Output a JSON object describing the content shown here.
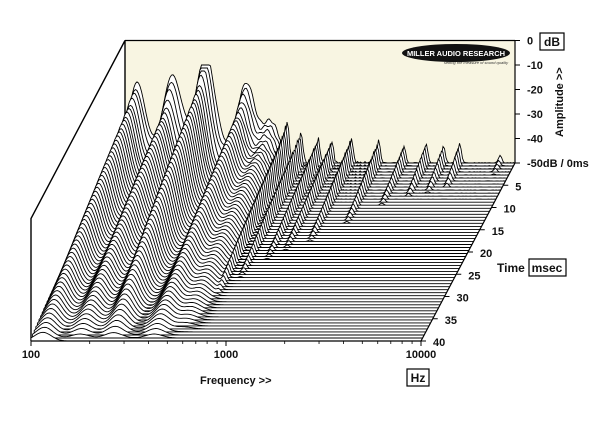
{
  "logo": {
    "brand": "MILLER AUDIO RESEARCH",
    "tagline": "setting the measure of sound quality"
  },
  "chart_data": {
    "type": "waterfall",
    "title": "",
    "x_axis": {
      "label": "Frequency >>",
      "unit": "Hz",
      "scale": "log",
      "range": [
        100,
        10000
      ],
      "ticks": [
        "100",
        "1000",
        "10000"
      ]
    },
    "y_axis": {
      "label": "Amplitude >>",
      "unit": "dB",
      "range": [
        -50,
        0
      ],
      "ticks": [
        "0",
        "-10",
        "-20",
        "-30",
        "-40",
        "-50dB / 0ms"
      ]
    },
    "z_axis": {
      "label": "Time",
      "unit": "msec",
      "range": [
        0,
        40
      ],
      "ticks": [
        "5",
        "10",
        "15",
        "20",
        "25",
        "30",
        "35",
        "40"
      ]
    },
    "slices": 60,
    "resonances": [
      {
        "freq_hz": 115,
        "peak_db": -20,
        "decay_ms": 42
      },
      {
        "freq_hz": 175,
        "peak_db": -22,
        "decay_ms": 40
      },
      {
        "freq_hz": 260,
        "peak_db": -12,
        "decay_ms": 40
      },
      {
        "freq_hz": 420,
        "peak_db": -22,
        "decay_ms": 40
      },
      {
        "freq_hz": 560,
        "peak_db": -36,
        "decay_ms": 38
      },
      {
        "freq_hz": 680,
        "peak_db": -37,
        "decay_ms": 30
      },
      {
        "freq_hz": 800,
        "peak_db": -38,
        "decay_ms": 26
      },
      {
        "freq_hz": 980,
        "peak_db": -40,
        "decay_ms": 22
      },
      {
        "freq_hz": 1150,
        "peak_db": -41,
        "decay_ms": 20
      },
      {
        "freq_hz": 1450,
        "peak_db": -40,
        "decay_ms": 18
      },
      {
        "freq_hz": 2000,
        "peak_db": -41,
        "decay_ms": 14
      },
      {
        "freq_hz": 2700,
        "peak_db": -43,
        "decay_ms": 10
      },
      {
        "freq_hz": 3500,
        "peak_db": -42,
        "decay_ms": 8
      },
      {
        "freq_hz": 4300,
        "peak_db": -43,
        "decay_ms": 7
      },
      {
        "freq_hz": 5200,
        "peak_db": -42,
        "decay_ms": 6
      },
      {
        "freq_hz": 8400,
        "peak_db": -47,
        "decay_ms": 3
      }
    ]
  }
}
